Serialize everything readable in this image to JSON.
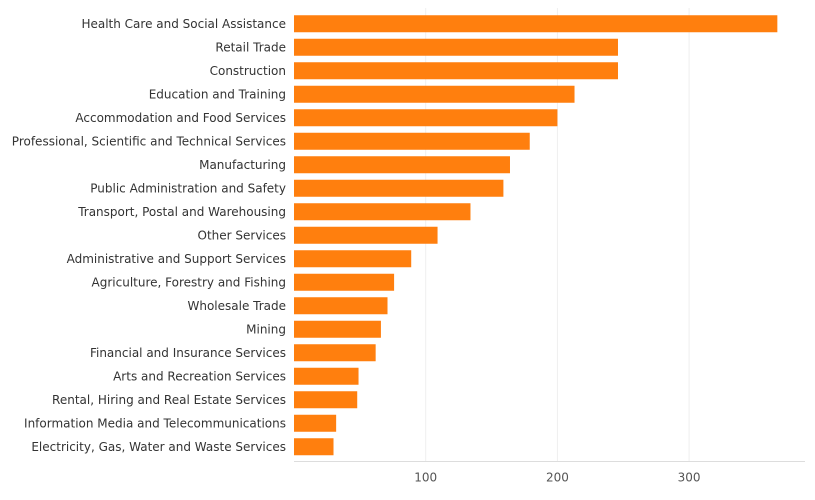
{
  "chart_data": {
    "type": "bar",
    "orientation": "horizontal",
    "categories": [
      "Health Care and Social Assistance",
      "Retail Trade",
      "Construction",
      "Education and Training",
      "Accommodation and Food Services",
      "Professional, Scientific and Technical Services",
      "Manufacturing",
      "Public Administration and Safety",
      "Transport, Postal and Warehousing",
      "Other Services",
      "Administrative and Support Services",
      "Agriculture, Forestry and Fishing",
      "Wholesale Trade",
      "Mining",
      "Financial and Insurance Services",
      "Arts and Recreation Services",
      "Rental, Hiring and Real Estate Services",
      "Information Media and Telecommunications",
      "Electricity, Gas, Water and Waste Services"
    ],
    "values": [
      367,
      246,
      246,
      213,
      200,
      179,
      164,
      159,
      134,
      109,
      89,
      76,
      71,
      66,
      62,
      49,
      48,
      32,
      30
    ],
    "title": "",
    "xlabel": "",
    "ylabel": "",
    "xlim": [
      0,
      388
    ],
    "xticks": [
      100,
      200,
      300
    ],
    "xtick_labels": [
      "100",
      "200",
      "300"
    ],
    "grid": true,
    "legend": "none",
    "bar_color": "#FF7F0E"
  }
}
